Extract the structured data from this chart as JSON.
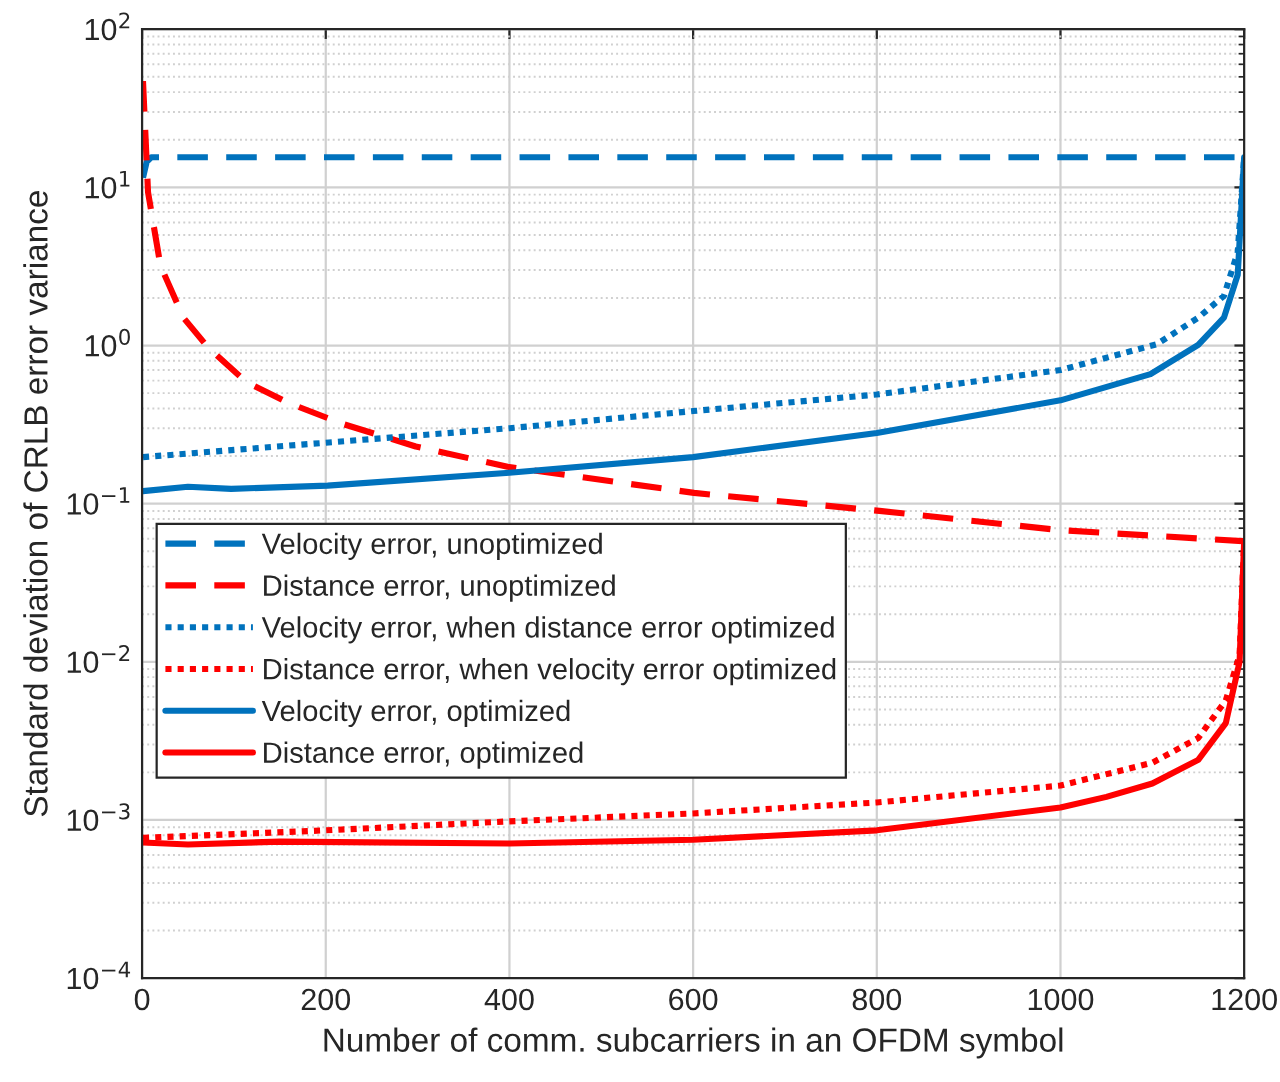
{
  "chart_data": {
    "type": "line",
    "xlabel": "Number of comm. subcarriers in an OFDM symbol",
    "ylabel": "Standard deviation of CRLB error variance",
    "log": "y",
    "grid": true,
    "legend": "center left",
    "marker": "none",
    "xlim": [
      0,
      1200
    ],
    "xticks": [
      0,
      200,
      400,
      600,
      800,
      1000,
      1200
    ],
    "ylim": [
      0.0001,
      100
    ],
    "yticks": [
      {
        "value": 0.0001,
        "label": "10$^{−4}$"
      },
      {
        "value": 0.001,
        "label": "10$^{−3}$"
      },
      {
        "value": 0.01,
        "label": "10$^{−2}$"
      },
      {
        "value": 0.1,
        "label": "10$^{−1}$"
      },
      {
        "value": 1,
        "label": "10$^{0}$"
      },
      {
        "value": 10,
        "label": "10$^{1}$"
      },
      {
        "value": 100,
        "label": "10$^{2}$"
      }
    ],
    "series": [
      {
        "name": "Velocity error, unoptimized",
        "color": "#0072bd",
        "line_style": "dashed",
        "x": [
          1,
          5,
          10,
          100,
          300,
          600,
          900,
          1200
        ],
        "values": [
          11.5,
          14.5,
          15.5,
          15.5,
          15.5,
          15.5,
          15.5,
          15.5
        ]
      },
      {
        "name": "Distance error, unoptimized",
        "color": "#ff0000",
        "line_style": "dashed",
        "x": [
          1,
          6.5,
          20,
          45,
          72,
          113,
          161,
          218,
          298,
          398,
          601,
          803,
          1000,
          1198,
          1200
        ],
        "values": [
          47,
          9.3,
          3.2,
          1.5,
          0.97,
          0.59,
          0.43,
          0.32,
          0.23,
          0.171,
          0.117,
          0.09,
          0.068,
          0.058,
          0.058
        ]
      },
      {
        "name": "Velocity error, when distance error optimized",
        "color": "#0072bd",
        "line_style": "dotted",
        "x": [
          1,
          400,
          600,
          800,
          1000,
          1105,
          1150,
          1178,
          1193,
          1200
        ],
        "values": [
          0.197,
          0.3,
          0.385,
          0.49,
          0.7,
          1.02,
          1.5,
          2.06,
          3.9,
          15.5
        ]
      },
      {
        "name": "Distance error, when velocity error optimized",
        "color": "#ff0000",
        "line_style": "dotted",
        "x": [
          1,
          200,
          400,
          600,
          800,
          1000,
          1100,
          1150,
          1180,
          1195,
          1200
        ],
        "values": [
          0.00077,
          0.00086,
          0.00098,
          0.0011,
          0.00129,
          0.00165,
          0.0023,
          0.0033,
          0.0057,
          0.011,
          0.058
        ]
      },
      {
        "name": "Velocity error, optimized",
        "color": "#0072bd",
        "line_style": "solid",
        "x": [
          1,
          50,
          97,
          202,
          400,
          600,
          800,
          1000,
          1098,
          1150,
          1178,
          1193,
          1200
        ],
        "values": [
          0.12,
          0.128,
          0.124,
          0.13,
          0.157,
          0.197,
          0.28,
          0.45,
          0.66,
          1.01,
          1.5,
          2.8,
          15.5
        ]
      },
      {
        "name": "Distance error, optimized",
        "color": "#ff0000",
        "line_style": "solid",
        "x": [
          1,
          50,
          150,
          400,
          600,
          800,
          1000,
          1050,
          1100,
          1150,
          1180,
          1195,
          1200
        ],
        "values": [
          0.00072,
          0.0007,
          0.00073,
          0.00071,
          0.00075,
          0.00086,
          0.0012,
          0.0014,
          0.0017,
          0.0024,
          0.0041,
          0.01,
          0.058
        ]
      }
    ]
  }
}
